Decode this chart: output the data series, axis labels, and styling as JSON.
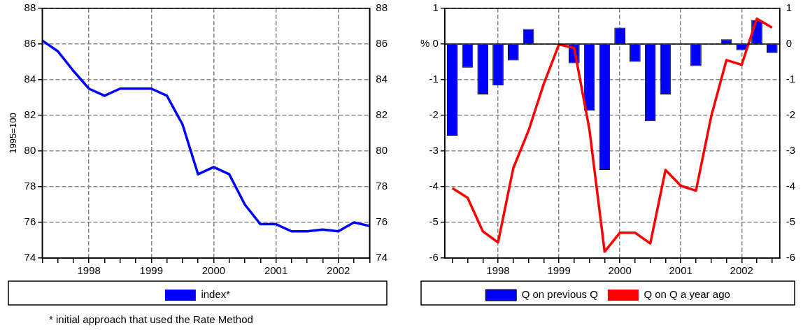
{
  "chart_data": [
    {
      "type": "line",
      "ylabel": "1995=100",
      "categories": [
        null,
        null,
        null,
        "1998",
        null,
        null,
        null,
        "1999",
        null,
        null,
        null,
        "2000",
        null,
        null,
        null,
        "2001",
        null,
        null,
        null,
        "2002",
        null,
        null
      ],
      "series": [
        {
          "name": "index*",
          "color": "#0000ff",
          "values": [
            86.2,
            85.6,
            84.5,
            83.5,
            83.1,
            83.5,
            83.5,
            83.5,
            83.1,
            81.5,
            78.7,
            79.1,
            78.7,
            77.0,
            75.9,
            75.9,
            75.5,
            75.5,
            75.6,
            75.5,
            76.0,
            75.8
          ]
        }
      ],
      "ylim": [
        74,
        88
      ],
      "yticks": [
        74,
        76,
        78,
        80,
        82,
        84,
        86,
        88
      ],
      "y2lim": [
        74,
        88
      ],
      "y2ticks": [
        74,
        76,
        78,
        80,
        82,
        84,
        86,
        88
      ],
      "grid": true,
      "legend": "bottom",
      "marker": "none",
      "line_style": "solid",
      "annotations": [
        "* initial approach that used the Rate Method"
      ]
    },
    {
      "type": "bar",
      "categories": [
        null,
        null,
        null,
        "1998",
        null,
        null,
        null,
        "1999",
        null,
        null,
        null,
        "2000",
        null,
        null,
        null,
        "2001",
        null,
        null,
        null,
        "2002",
        null,
        null
      ],
      "series": [
        {
          "name": "Q on previous Q",
          "type": "bar",
          "color": "#0000ff",
          "values": [
            -2.57,
            -0.66,
            -1.41,
            -1.16,
            -0.46,
            0.42,
            null,
            null,
            -0.54,
            -1.87,
            -3.53,
            0.46,
            -0.5,
            -2.16,
            -1.41,
            0,
            -0.62,
            0,
            0.13,
            -0.17,
            0.67,
            -0.25
          ]
        },
        {
          "name": "Q on Q a year ago",
          "type": "line",
          "color": "#ff0000",
          "values": [
            -4.04,
            -4.31,
            -5.25,
            -5.56,
            -3.48,
            -2.43,
            -1.12,
            -0.01,
            -0.11,
            -2.39,
            -5.82,
            -5.29,
            -5.29,
            -5.59,
            -3.53,
            -3.97,
            -4.11,
            -2.03,
            -0.45,
            -0.58,
            0.71,
            0.46
          ]
        }
      ],
      "ylim": [
        -6,
        1
      ],
      "yticks": [
        -6,
        -5,
        -4,
        -3,
        -2,
        -1,
        {
          "value": 0,
          "label": "% 0"
        },
        1
      ],
      "y2lim": [
        -6,
        1
      ],
      "y2ticks": [
        -6,
        -5,
        -4,
        -3,
        -2,
        -1,
        0,
        1
      ],
      "grid": true,
      "legend": "bottom",
      "marker": "none",
      "line_style": "solid"
    }
  ]
}
